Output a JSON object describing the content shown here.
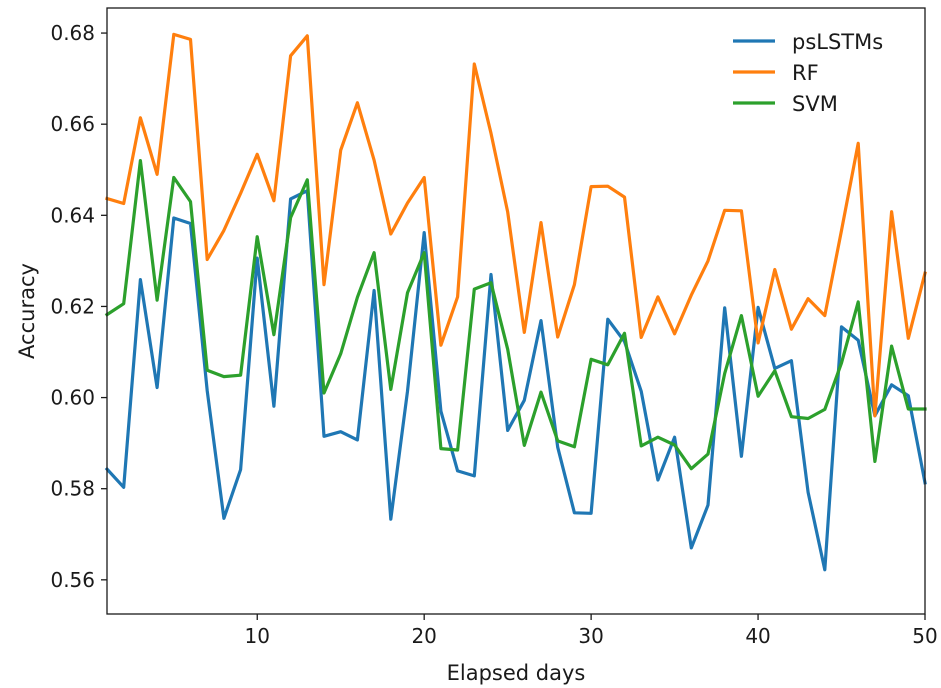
{
  "chart_data": {
    "type": "line",
    "title": "",
    "xlabel": "Elapsed days",
    "ylabel": "Accuracy",
    "xlim": [
      1,
      50
    ],
    "ylim": [
      0.5525,
      0.6855
    ],
    "xticks": [
      10,
      20,
      30,
      40,
      50
    ],
    "yticks": [
      0.56,
      0.58,
      0.6,
      0.62,
      0.64,
      0.66,
      0.68
    ],
    "grid": false,
    "legend_position": "upper-right",
    "x": [
      1,
      2,
      3,
      4,
      5,
      6,
      7,
      8,
      9,
      10,
      11,
      12,
      13,
      14,
      15,
      16,
      17,
      18,
      19,
      20,
      21,
      22,
      23,
      24,
      25,
      26,
      27,
      28,
      29,
      30,
      31,
      32,
      33,
      34,
      35,
      36,
      37,
      38,
      39,
      40,
      41,
      42,
      43,
      44,
      45,
      46,
      47,
      48,
      49,
      50
    ],
    "series": [
      {
        "name": "psLSTMs",
        "color": "#1f77b4",
        "values": [
          0.5843,
          0.5803,
          0.6259,
          0.6022,
          0.6394,
          0.6382,
          0.6015,
          0.5735,
          0.5842,
          0.6306,
          0.5981,
          0.6436,
          0.6454,
          0.5915,
          0.5925,
          0.5907,
          0.6235,
          0.5733,
          0.6014,
          0.6362,
          0.597,
          0.5839,
          0.5828,
          0.627,
          0.5928,
          0.5994,
          0.6169,
          0.5891,
          0.5747,
          0.5746,
          0.6172,
          0.6123,
          0.6014,
          0.5819,
          0.5913,
          0.567,
          0.5764,
          0.6197,
          0.5871,
          0.6198,
          0.6064,
          0.6081,
          0.5792,
          0.5622,
          0.6155,
          0.6126,
          0.596,
          0.6028,
          0.6004,
          0.5813
        ]
      },
      {
        "name": "RF",
        "color": "#ff7f0e",
        "values": [
          0.6437,
          0.6426,
          0.6614,
          0.649,
          0.6797,
          0.6786,
          0.6303,
          0.6367,
          0.6448,
          0.6534,
          0.6432,
          0.675,
          0.6794,
          0.6248,
          0.6543,
          0.6647,
          0.6521,
          0.6359,
          0.6427,
          0.6483,
          0.6115,
          0.6221,
          0.6732,
          0.658,
          0.6407,
          0.6143,
          0.6384,
          0.6133,
          0.6248,
          0.6463,
          0.6464,
          0.644,
          0.6132,
          0.6221,
          0.614,
          0.6225,
          0.63,
          0.6411,
          0.641,
          0.612,
          0.6281,
          0.615,
          0.6217,
          0.618,
          0.6367,
          0.6558,
          0.596,
          0.6408,
          0.613,
          0.6273
        ]
      },
      {
        "name": "SVM",
        "color": "#2ca02c",
        "values": [
          0.6182,
          0.6206,
          0.652,
          0.6214,
          0.6483,
          0.643,
          0.606,
          0.6046,
          0.6049,
          0.6353,
          0.6138,
          0.6395,
          0.6478,
          0.601,
          0.6096,
          0.622,
          0.6318,
          0.6018,
          0.623,
          0.6318,
          0.5888,
          0.5885,
          0.6238,
          0.6252,
          0.6106,
          0.5895,
          0.6012,
          0.5905,
          0.5892,
          0.6084,
          0.6072,
          0.6141,
          0.5894,
          0.5913,
          0.5896,
          0.5844,
          0.5876,
          0.6053,
          0.618,
          0.6003,
          0.6059,
          0.5958,
          0.5954,
          0.5974,
          0.6076,
          0.621,
          0.586,
          0.6113,
          0.5975,
          0.5975
        ]
      }
    ]
  }
}
